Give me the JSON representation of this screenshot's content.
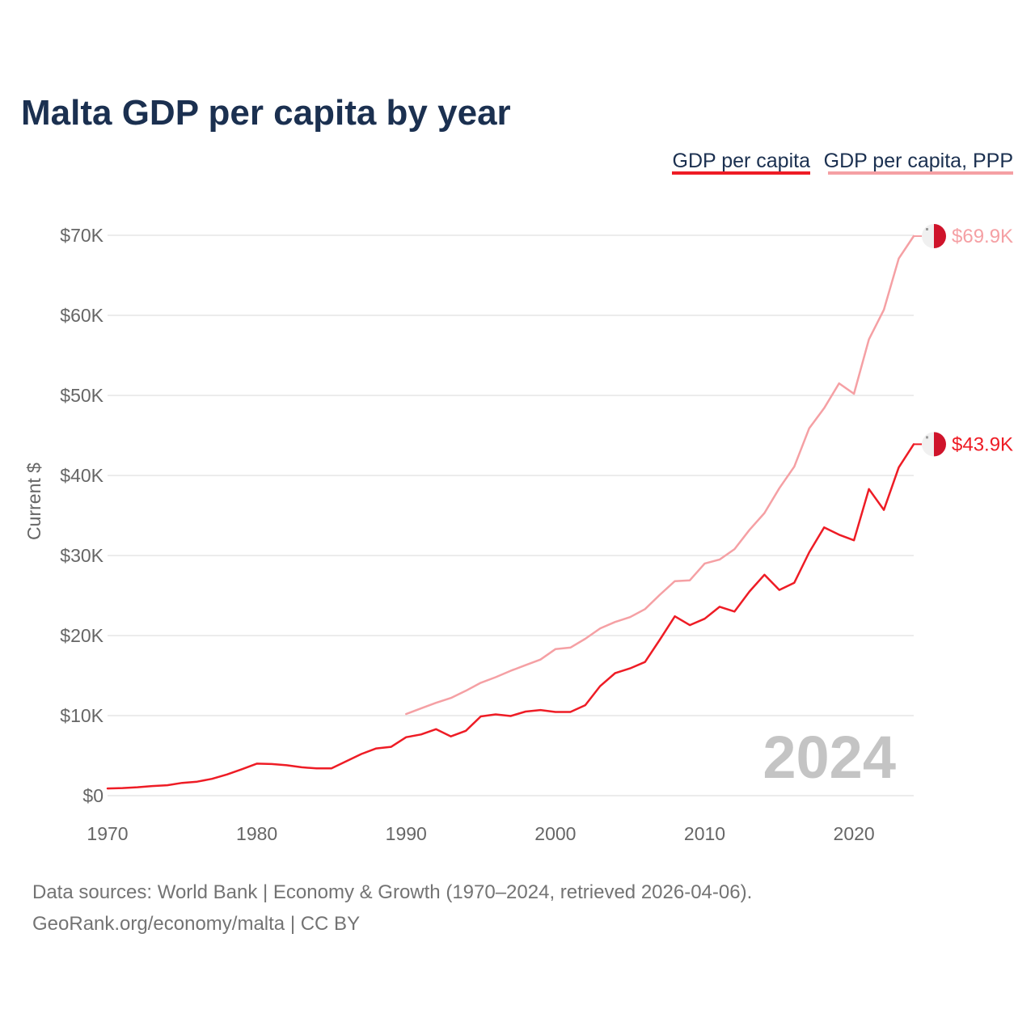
{
  "colors": {
    "gdp": "#ee1c25",
    "ppp": "#f5a0a4",
    "title": "#1b3050",
    "grid": "#e6e6e6",
    "tick": "#666666",
    "watermark": "#c4c4c4",
    "flag_white": "#f0f0f0",
    "flag_red": "#cf142b"
  },
  "icons": {
    "end_marker": "malta-flag-icon"
  },
  "chart_data": {
    "type": "line",
    "title": "Malta GDP per capita by year",
    "ylabel": "Current $",
    "xlabel": "",
    "xlim": [
      1970,
      2024
    ],
    "ylim": [
      0,
      70000
    ],
    "xticks": [
      1970,
      1980,
      1990,
      2000,
      2010,
      2020
    ],
    "xtick_labels": [
      "1970",
      "1980",
      "1990",
      "2000",
      "2010",
      "2020"
    ],
    "yticks": [
      0,
      10000,
      20000,
      30000,
      40000,
      50000,
      60000,
      70000
    ],
    "ytick_labels": [
      "$0",
      "$10K",
      "$20K",
      "$30K",
      "$40K",
      "$50K",
      "$60K",
      "$70K"
    ],
    "legend": {
      "position": "top-right",
      "entries": [
        "GDP per capita",
        "GDP per capita, PPP"
      ]
    },
    "watermark_year": "2024",
    "series": [
      {
        "name": "GDP per capita",
        "x": [
          1970,
          1971,
          1972,
          1973,
          1974,
          1975,
          1976,
          1977,
          1978,
          1979,
          1980,
          1981,
          1982,
          1983,
          1984,
          1985,
          1986,
          1987,
          1988,
          1989,
          1990,
          1991,
          1992,
          1993,
          1994,
          1995,
          1996,
          1997,
          1998,
          1999,
          2000,
          2001,
          2002,
          2003,
          2004,
          2005,
          2006,
          2007,
          2008,
          2009,
          2010,
          2011,
          2012,
          2013,
          2014,
          2015,
          2016,
          2017,
          2018,
          2019,
          2020,
          2021,
          2022,
          2023,
          2024
        ],
        "values": [
          900,
          950,
          1050,
          1200,
          1300,
          1600,
          1750,
          2100,
          2650,
          3300,
          4000,
          3950,
          3800,
          3550,
          3400,
          3400,
          4300,
          5200,
          5900,
          6100,
          7300,
          7650,
          8300,
          7400,
          8100,
          9900,
          10150,
          9950,
          10500,
          10700,
          10450,
          10450,
          11300,
          13700,
          15300,
          15900,
          16700,
          19500,
          22400,
          21300,
          22100,
          23600,
          23000,
          25500,
          27600,
          25700,
          26600,
          30400,
          33500,
          32600,
          31900,
          38300,
          35700,
          41000,
          43900
        ],
        "end_label": "$43.9K"
      },
      {
        "name": "GDP per capita, PPP",
        "x": [
          1990,
          1991,
          1992,
          1993,
          1994,
          1995,
          1996,
          1997,
          1998,
          1999,
          2000,
          2001,
          2002,
          2003,
          2004,
          2005,
          2006,
          2007,
          2008,
          2009,
          2010,
          2011,
          2012,
          2013,
          2014,
          2015,
          2016,
          2017,
          2018,
          2019,
          2020,
          2021,
          2022,
          2023,
          2024
        ],
        "values": [
          10200,
          10900,
          11600,
          12200,
          13100,
          14100,
          14800,
          15600,
          16300,
          17000,
          18300,
          18500,
          19600,
          20900,
          21700,
          22300,
          23300,
          25100,
          26800,
          26900,
          29000,
          29500,
          30800,
          33200,
          35300,
          38400,
          41100,
          45900,
          48400,
          51500,
          50200,
          57000,
          60700,
          67100,
          69900
        ],
        "end_label": "$69.9K"
      }
    ]
  },
  "footer": {
    "source_line1": "Data sources: World Bank | Economy & Growth (1970–2024, retrieved 2026-04-06).",
    "source_line2": "GeoRank.org/economy/malta | CC BY"
  }
}
